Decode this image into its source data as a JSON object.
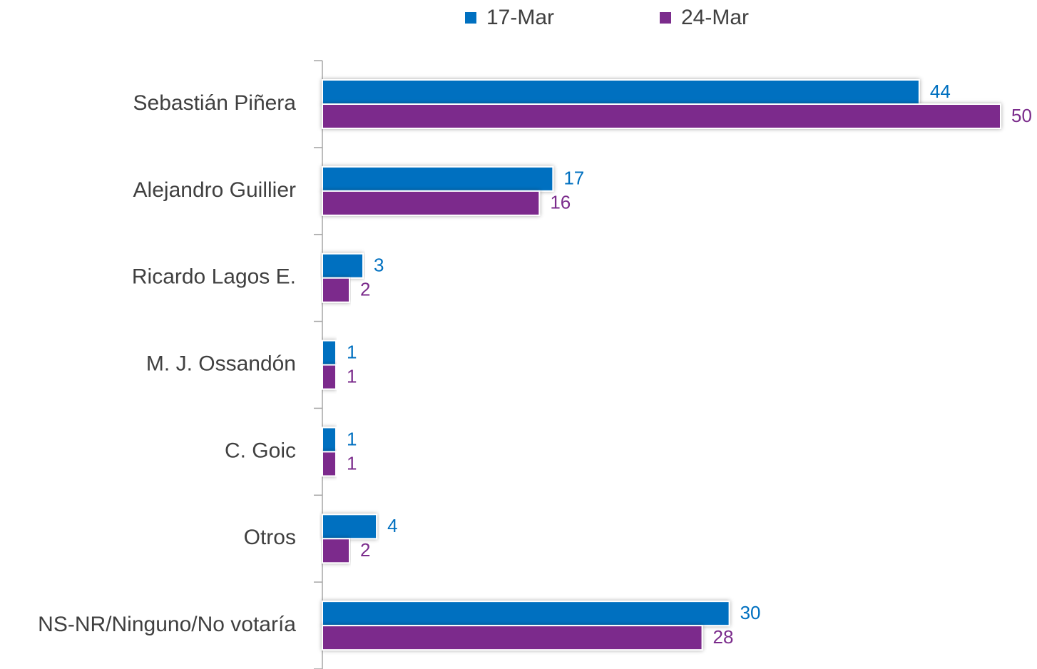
{
  "chart_data": {
    "type": "bar",
    "orientation": "horizontal",
    "categories": [
      "Sebastián Piñera",
      "Alejandro Guillier",
      "Ricardo Lagos E.",
      "M. J. Ossandón",
      "C. Goic",
      "Otros",
      "NS-NR/Ninguno/No votaría"
    ],
    "series": [
      {
        "name": "17-Mar",
        "color": "#0070c0",
        "values": [
          44,
          17,
          3,
          1,
          1,
          4,
          30
        ]
      },
      {
        "name": "24-Mar",
        "color": "#7b2c8c",
        "values": [
          50,
          16,
          2,
          1,
          1,
          2,
          28
        ]
      }
    ],
    "xlim": [
      0,
      50
    ],
    "legend": "top"
  }
}
